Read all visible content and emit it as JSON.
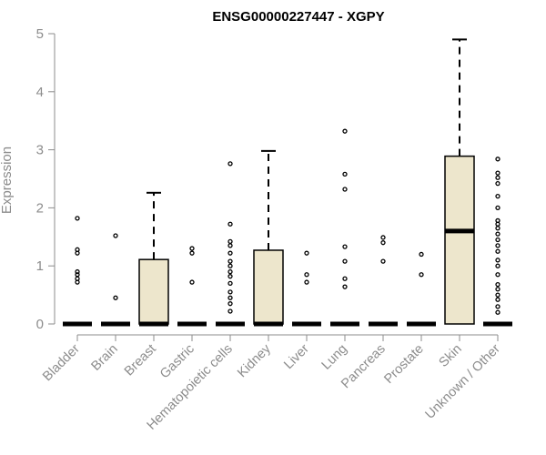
{
  "chart_data": {
    "type": "box",
    "title": "ENSG00000227447 - XGPY",
    "xlabel": "",
    "ylabel": "Expression",
    "ylim": [
      0,
      5
    ],
    "yticks": [
      0,
      1,
      2,
      3,
      4,
      5
    ],
    "box_fill": "#ede6cc",
    "categories": [
      "Bladder",
      "Brain",
      "Breast",
      "Gastric",
      "Hematopoietic cells",
      "Kidney",
      "Liver",
      "Lung",
      "Pancreas",
      "Prostate",
      "Skin",
      "Unknown / Other"
    ],
    "boxes": [
      {
        "q1": 0,
        "median": 0,
        "q3": 0,
        "whisker_low": 0,
        "whisker_high": 0,
        "outliers": [
          0.72,
          0.78,
          0.85,
          0.9,
          1.22,
          1.28,
          1.82
        ]
      },
      {
        "q1": 0,
        "median": 0,
        "q3": 0,
        "whisker_low": 0,
        "whisker_high": 0,
        "outliers": [
          0.45,
          1.52
        ]
      },
      {
        "q1": 0,
        "median": 0,
        "q3": 1.11,
        "whisker_low": 0,
        "whisker_high": 2.26,
        "outliers": []
      },
      {
        "q1": 0,
        "median": 0,
        "q3": 0,
        "whisker_low": 0,
        "whisker_high": 0,
        "outliers": [
          0.72,
          1.22,
          1.3
        ]
      },
      {
        "q1": 0,
        "median": 0,
        "q3": 0,
        "whisker_low": 0,
        "whisker_high": 0,
        "outliers": [
          0.22,
          0.35,
          0.45,
          0.55,
          0.7,
          0.82,
          0.9,
          1.0,
          1.08,
          1.22,
          1.35,
          1.42,
          1.72,
          2.76
        ]
      },
      {
        "q1": 0,
        "median": 0,
        "q3": 1.27,
        "whisker_low": 0,
        "whisker_high": 2.98,
        "outliers": []
      },
      {
        "q1": 0,
        "median": 0,
        "q3": 0,
        "whisker_low": 0,
        "whisker_high": 0,
        "outliers": [
          0.72,
          0.85,
          1.22
        ]
      },
      {
        "q1": 0,
        "median": 0,
        "q3": 0,
        "whisker_low": 0,
        "whisker_high": 0,
        "outliers": [
          0.64,
          0.78,
          1.08,
          1.33,
          2.32,
          2.58,
          3.32
        ]
      },
      {
        "q1": 0,
        "median": 0,
        "q3": 0,
        "whisker_low": 0,
        "whisker_high": 0,
        "outliers": [
          1.08,
          1.4,
          1.49
        ]
      },
      {
        "q1": 0,
        "median": 0,
        "q3": 0,
        "whisker_low": 0,
        "whisker_high": 0,
        "outliers": [
          0.85,
          1.2
        ]
      },
      {
        "q1": 0,
        "median": 1.6,
        "q3": 2.89,
        "whisker_low": 0,
        "whisker_high": 4.9,
        "outliers": []
      },
      {
        "q1": 0,
        "median": 0,
        "q3": 0,
        "whisker_low": 0,
        "whisker_high": 0,
        "outliers": [
          0.2,
          0.3,
          0.42,
          0.5,
          0.6,
          0.68,
          0.85,
          1.0,
          1.1,
          1.25,
          1.35,
          1.45,
          1.55,
          1.65,
          1.72,
          1.78,
          2.0,
          2.2,
          2.42,
          2.52,
          2.6,
          2.84
        ]
      }
    ]
  }
}
